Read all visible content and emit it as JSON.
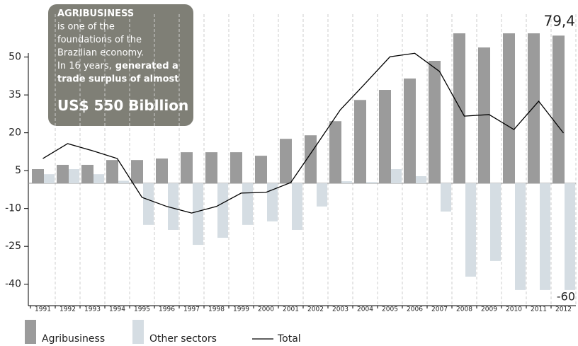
{
  "chart_data": {
    "type": "bar-line",
    "categories": [
      "1991",
      "1992",
      "1993",
      "1994",
      "1995",
      "1996",
      "1997",
      "1998",
      "1999",
      "2000",
      "2001",
      "2002",
      "2003",
      "2004",
      "2005",
      "2006",
      "2007",
      "2008",
      "2009",
      "2010",
      "2011",
      "2012"
    ],
    "series": [
      {
        "name": "Agribusiness",
        "type": "bar",
        "color": "#9b9b9b",
        "values": [
          5.6,
          7.3,
          7.3,
          9.2,
          9.2,
          9.8,
          12.3,
          12.3,
          12.3,
          10.9,
          17.6,
          19,
          24.6,
          33,
          37,
          41.5,
          48.5,
          59.4,
          53.8,
          59.4,
          59.4,
          58.5
        ]
      },
      {
        "name": "Other sectors",
        "type": "bar",
        "color": "#d5dde3",
        "values": [
          3.6,
          5.6,
          3.6,
          1,
          -16.5,
          -18.5,
          -24.4,
          -21.6,
          -16.5,
          -15.1,
          -18.5,
          -9.2,
          0.8,
          0.5,
          5.6,
          2.8,
          -11.2,
          -37,
          -30.8,
          -42.3,
          -42.3,
          -42.3
        ]
      },
      {
        "name": "Total",
        "type": "line",
        "color": "#000000",
        "values": [
          9.8,
          15.7,
          12.9,
          9.8,
          -5.6,
          -9.2,
          -11.8,
          -9.2,
          -3.9,
          -3.6,
          0.3,
          14.6,
          29.1,
          39.5,
          50.1,
          51.5,
          44.3,
          26.6,
          27.2,
          21.3,
          32.5,
          19.9
        ]
      }
    ],
    "ylim": [
      -48.5,
      67
    ],
    "yticks": [
      50,
      35,
      20,
      5,
      -10,
      -25,
      -40
    ],
    "annotations": [
      "79,4",
      "-60"
    ],
    "info_box": [
      [
        {
          "text": "AGRIBUSINESS",
          "bold": true
        }
      ],
      [
        {
          "text": "is one of the",
          "bold": false
        }
      ],
      [
        {
          "text": "foundations of the",
          "bold": false
        }
      ],
      [
        {
          "text": "Brazilian economy.",
          "bold": false
        }
      ],
      [
        {
          "text": "In 16 years,",
          "bold": false
        },
        {
          "text": "generated a",
          "bold": true
        }
      ],
      [
        {
          "text": "trade surplus of almost",
          "bold": true
        }
      ],
      [
        {
          "text": "US$ 550 Bibllion",
          "bold": true,
          "large": true
        }
      ]
    ]
  }
}
